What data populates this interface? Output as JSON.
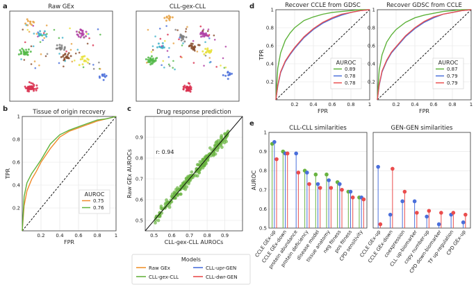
{
  "panel_letters": {
    "a": "a",
    "b": "b",
    "c": "c",
    "d": "d",
    "e": "e"
  },
  "colors": {
    "raw": "#f0922e",
    "gex": "#68b33f",
    "upr": "#4a6fdb",
    "dwr": "#ea4d4d",
    "orange": "#f08a2a",
    "green": "#5db23a"
  },
  "legend": {
    "title": "Models",
    "items": [
      {
        "label": "Raw GEx",
        "color": "#f0922e"
      },
      {
        "label": "CLL-upr-GEN",
        "color": "#4a6fdb"
      },
      {
        "label": "CLL-gex-CLL",
        "color": "#68b33f"
      },
      {
        "label": "CLL-dwr-GEN",
        "color": "#ea4d4d"
      }
    ]
  },
  "chart_data": [
    {
      "panel": "a-left",
      "type": "scatter",
      "title": "Raw GEx",
      "clusters": [
        {
          "color": "#d9304f",
          "cx": 0.2,
          "cy": 0.85,
          "n": 40
        },
        {
          "color": "#e6a040",
          "cx": 0.2,
          "cy": 0.12,
          "n": 10
        },
        {
          "color": "#52b848",
          "cx": 0.15,
          "cy": 0.45,
          "n": 25
        },
        {
          "color": "#3fb2c9",
          "cx": 0.32,
          "cy": 0.25,
          "n": 12
        },
        {
          "color": "#b03fa4",
          "cx": 0.7,
          "cy": 0.25,
          "n": 20
        },
        {
          "color": "#e8e03a",
          "cx": 0.72,
          "cy": 0.55,
          "n": 15
        },
        {
          "color": "#8a4f2f",
          "cx": 0.55,
          "cy": 0.5,
          "n": 20
        },
        {
          "color": "#4a6fdb",
          "cx": 0.9,
          "cy": 0.72,
          "n": 10
        },
        {
          "color": "#7f7f7f",
          "cx": 0.5,
          "cy": 0.4,
          "n": 15
        }
      ]
    },
    {
      "panel": "a-right",
      "type": "scatter",
      "title": "CLL-gex-CLL",
      "clusters": [
        {
          "color": "#d9304f",
          "cx": 0.5,
          "cy": 0.85,
          "n": 40
        },
        {
          "color": "#e6a040",
          "cx": 0.3,
          "cy": 0.08,
          "n": 10
        },
        {
          "color": "#52b848",
          "cx": 0.15,
          "cy": 0.55,
          "n": 30
        },
        {
          "color": "#3fb2c9",
          "cx": 0.25,
          "cy": 0.4,
          "n": 12
        },
        {
          "color": "#b03fa4",
          "cx": 0.65,
          "cy": 0.25,
          "n": 20
        },
        {
          "color": "#e8e03a",
          "cx": 0.7,
          "cy": 0.45,
          "n": 15
        },
        {
          "color": "#8a4f2f",
          "cx": 0.55,
          "cy": 0.4,
          "n": 20
        },
        {
          "color": "#4a6fdb",
          "cx": 0.9,
          "cy": 0.7,
          "n": 10
        },
        {
          "color": "#7f7f7f",
          "cx": 0.45,
          "cy": 0.3,
          "n": 15
        }
      ]
    },
    {
      "panel": "b",
      "type": "line",
      "title": "Tissue of origin recovery",
      "xlabel": "FPR",
      "ylabel": "TPR",
      "xlim": [
        0,
        1
      ],
      "ylim": [
        0,
        1
      ],
      "xticks": [
        0.2,
        0.4,
        0.6,
        0.8,
        1
      ],
      "yticks": [
        0.2,
        0.4,
        0.6,
        0.8,
        1
      ],
      "legend_title": "AUROC",
      "series": [
        {
          "name": "0.75",
          "color": "#f08a2a",
          "x": [
            0,
            0.02,
            0.05,
            0.1,
            0.15,
            0.2,
            0.3,
            0.4,
            0.5,
            0.6,
            0.7,
            0.8,
            0.9,
            1
          ],
          "y": [
            0,
            0.22,
            0.35,
            0.45,
            0.52,
            0.6,
            0.72,
            0.82,
            0.87,
            0.9,
            0.93,
            0.96,
            0.98,
            1
          ]
        },
        {
          "name": "0.76",
          "color": "#5db23a",
          "x": [
            0,
            0.02,
            0.05,
            0.1,
            0.15,
            0.2,
            0.3,
            0.4,
            0.5,
            0.6,
            0.7,
            0.8,
            0.9,
            1
          ],
          "y": [
            0,
            0.3,
            0.42,
            0.5,
            0.56,
            0.62,
            0.76,
            0.84,
            0.88,
            0.91,
            0.94,
            0.97,
            0.98,
            1
          ]
        }
      ]
    },
    {
      "panel": "c",
      "type": "scatter",
      "title": "Drug response prediction",
      "xlabel": "CLL-gex-CLL AUROCs",
      "ylabel": "Raw GEx AUROCs",
      "xlim": [
        0.45,
        1.0
      ],
      "ylim": [
        0.45,
        1.0
      ],
      "xticks": [
        0.5,
        0.6,
        0.7,
        0.8,
        0.9
      ],
      "yticks": [
        0.5,
        0.6,
        0.7,
        0.8,
        0.9
      ],
      "annotation": "r: 0.94",
      "color": "#68b33f",
      "n_points": 210
    },
    {
      "panel": "d-left",
      "type": "line",
      "title": "Recover CCLE from GDSC",
      "xlabel": "FPR",
      "ylabel": "TPR",
      "xlim": [
        0,
        1
      ],
      "ylim": [
        0,
        1
      ],
      "xticks": [
        0.2,
        0.4,
        0.6,
        0.8,
        1
      ],
      "yticks": [
        0.2,
        0.4,
        0.6,
        0.8,
        1
      ],
      "legend_title": "AUROC",
      "series": [
        {
          "name": "0.89",
          "color": "#5db23a",
          "x": [
            0,
            0.02,
            0.05,
            0.1,
            0.15,
            0.2,
            0.3,
            0.4,
            0.5,
            0.6,
            0.7,
            0.8,
            0.9,
            1
          ],
          "y": [
            0,
            0.35,
            0.52,
            0.66,
            0.74,
            0.8,
            0.88,
            0.92,
            0.95,
            0.97,
            0.98,
            0.99,
            1,
            1
          ]
        },
        {
          "name": "0.78",
          "color": "#4a6fdb",
          "x": [
            0,
            0.02,
            0.05,
            0.1,
            0.15,
            0.2,
            0.3,
            0.4,
            0.5,
            0.6,
            0.7,
            0.8,
            0.9,
            1
          ],
          "y": [
            0,
            0.15,
            0.3,
            0.42,
            0.5,
            0.57,
            0.69,
            0.78,
            0.85,
            0.9,
            0.94,
            0.97,
            0.99,
            1
          ]
        },
        {
          "name": "0.78",
          "color": "#ea4d4d",
          "x": [
            0,
            0.02,
            0.05,
            0.1,
            0.15,
            0.2,
            0.3,
            0.4,
            0.5,
            0.6,
            0.7,
            0.8,
            0.9,
            1
          ],
          "y": [
            0,
            0.16,
            0.31,
            0.43,
            0.51,
            0.58,
            0.7,
            0.79,
            0.86,
            0.91,
            0.95,
            0.97,
            0.99,
            1
          ]
        }
      ]
    },
    {
      "panel": "d-right",
      "type": "line",
      "title": "Recover GDSC from CCLE",
      "xlabel": "FPR",
      "ylabel": "",
      "xlim": [
        0,
        1
      ],
      "ylim": [
        0,
        1
      ],
      "xticks": [
        0.2,
        0.4,
        0.6,
        0.8,
        1
      ],
      "yticks": [
        0.2,
        0.4,
        0.6,
        0.8,
        1
      ],
      "legend_title": "AUROC",
      "series": [
        {
          "name": "0.87",
          "color": "#5db23a",
          "x": [
            0,
            0.02,
            0.05,
            0.1,
            0.15,
            0.2,
            0.3,
            0.4,
            0.5,
            0.6,
            0.7,
            0.8,
            0.9,
            1
          ],
          "y": [
            0,
            0.33,
            0.5,
            0.64,
            0.72,
            0.78,
            0.86,
            0.91,
            0.94,
            0.96,
            0.98,
            0.99,
            1,
            1
          ]
        },
        {
          "name": "0.79",
          "color": "#4a6fdb",
          "x": [
            0,
            0.02,
            0.05,
            0.1,
            0.15,
            0.2,
            0.3,
            0.4,
            0.5,
            0.6,
            0.7,
            0.8,
            0.9,
            1
          ],
          "y": [
            0,
            0.16,
            0.31,
            0.43,
            0.52,
            0.58,
            0.7,
            0.79,
            0.86,
            0.91,
            0.95,
            0.97,
            0.99,
            1
          ]
        },
        {
          "name": "0.79",
          "color": "#ea4d4d",
          "x": [
            0,
            0.02,
            0.05,
            0.1,
            0.15,
            0.2,
            0.3,
            0.4,
            0.5,
            0.6,
            0.7,
            0.8,
            0.9,
            1
          ],
          "y": [
            0,
            0.17,
            0.32,
            0.44,
            0.53,
            0.59,
            0.71,
            0.8,
            0.87,
            0.92,
            0.95,
            0.97,
            0.99,
            1
          ]
        }
      ]
    },
    {
      "panel": "e-left",
      "type": "lollipop",
      "title": "CLL-CLL similarities",
      "ylabel": "AUROC",
      "ylim": [
        0.5,
        1.0
      ],
      "yticks": [
        0.5,
        0.6,
        0.7,
        0.8,
        0.9,
        1
      ],
      "categories": [
        "CCLE GEx-up",
        "CCLE GEx-down",
        "protein abundance",
        "protein deficiency",
        "disease model",
        "tissue anatomy",
        "neg fitness",
        "pos fitness",
        "CPD sensitivity"
      ],
      "series": [
        {
          "name": "CLL-gex-CLL",
          "color": "#68b33f",
          "values": [
            0.94,
            0.9,
            null,
            0.8,
            0.78,
            0.78,
            0.74,
            0.69,
            0.66
          ]
        },
        {
          "name": "CLL-upr-GEN",
          "color": "#4a6fdb",
          "values": [
            0.95,
            0.89,
            0.89,
            0.79,
            0.73,
            0.75,
            0.73,
            0.69,
            0.66
          ]
        },
        {
          "name": "CLL-dwr-GEN",
          "color": "#ea4d4d",
          "values": [
            0.86,
            0.89,
            0.79,
            0.73,
            0.71,
            0.71,
            0.7,
            0.66,
            0.65
          ]
        }
      ]
    },
    {
      "panel": "e-right",
      "type": "lollipop",
      "title": "GEN-GEN similarities",
      "ylim": [
        0.5,
        1.0
      ],
      "yticks": [
        0.5,
        0.6,
        0.7,
        0.8,
        0.9,
        1
      ],
      "categories": [
        "CCLE GEx-up",
        "CCLE GEx-down",
        "coexpression",
        "CLL up-biomarker",
        "copy number-up",
        "CPD down-biomarker",
        "TF up-regulation",
        "CPD GEx-up"
      ],
      "series": [
        {
          "name": "CLL-upr-GEN",
          "color": "#4a6fdb",
          "values": [
            0.82,
            0.57,
            0.64,
            0.64,
            0.56,
            0.52,
            0.57,
            0.53
          ]
        },
        {
          "name": "CLL-dwr-GEN",
          "color": "#ea4d4d",
          "values": [
            0.52,
            0.81,
            0.69,
            0.58,
            0.59,
            0.58,
            0.58,
            0.57
          ]
        }
      ]
    }
  ]
}
